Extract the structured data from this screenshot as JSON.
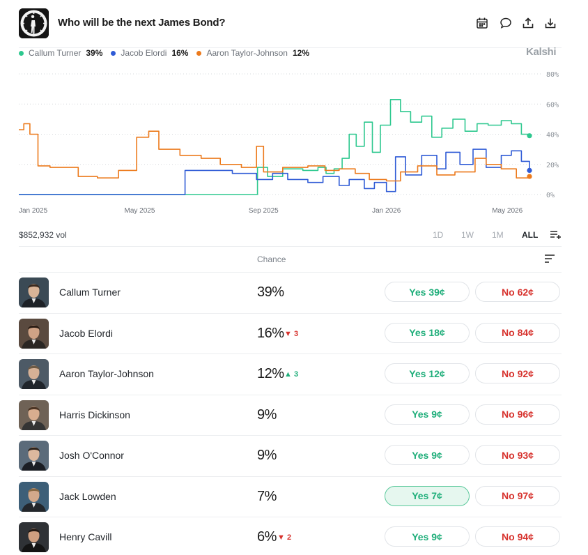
{
  "header": {
    "title": "Who will be the next James Bond?",
    "icons": [
      "calendar-icon",
      "comment-icon",
      "share-icon",
      "download-icon"
    ]
  },
  "legend": [
    {
      "name": "Callum Turner",
      "pct": "39%",
      "color": "#2ec88f"
    },
    {
      "name": "Jacob Elordi",
      "pct": "16%",
      "color": "#2f5bd6"
    },
    {
      "name": "Aaron Taylor-Johnson",
      "pct": "12%",
      "color": "#ec7a1c"
    }
  ],
  "brand": "Kalshi",
  "chart_data": {
    "type": "line",
    "x_ticks": [
      "Jan 2025",
      "May 2025",
      "Sep 2025",
      "Jan 2026",
      "May 2026"
    ],
    "y_ticks": [
      "80%",
      "60%",
      "40%",
      "20%",
      "0%"
    ],
    "ylim": [
      0,
      80
    ],
    "grid": true,
    "series": [
      {
        "name": "Callum Turner",
        "color": "#2ec88f",
        "x": [
          "2025-01-01",
          "2025-06-15",
          "2025-08-25",
          "2025-08-26",
          "2025-09-05",
          "2025-09-20",
          "2025-10-10",
          "2025-10-25",
          "2025-11-02",
          "2025-11-10",
          "2025-11-18",
          "2025-11-25",
          "2025-12-02",
          "2025-12-10",
          "2025-12-18",
          "2025-12-26",
          "2026-01-05",
          "2026-01-15",
          "2026-01-25",
          "2026-02-05",
          "2026-02-15",
          "2026-02-25",
          "2026-03-08",
          "2026-03-20",
          "2026-04-01",
          "2026-04-12",
          "2026-04-25",
          "2026-05-05",
          "2026-05-15",
          "2026-05-23"
        ],
        "y": [
          0,
          0,
          0,
          18,
          12,
          17,
          16,
          18,
          14,
          17,
          24,
          40,
          32,
          48,
          28,
          46,
          63,
          55,
          48,
          52,
          38,
          44,
          50,
          42,
          47,
          46,
          49,
          47,
          40,
          39
        ]
      },
      {
        "name": "Jacob Elordi",
        "color": "#2f5bd6",
        "x": [
          "2025-01-01",
          "2025-06-14",
          "2025-06-15",
          "2025-07-10",
          "2025-08-01",
          "2025-08-25",
          "2025-09-10",
          "2025-09-25",
          "2025-10-15",
          "2025-10-30",
          "2025-11-15",
          "2025-11-25",
          "2025-12-10",
          "2025-12-20",
          "2026-01-01",
          "2026-01-10",
          "2026-01-20",
          "2026-02-05",
          "2026-02-20",
          "2026-03-01",
          "2026-03-15",
          "2026-03-28",
          "2026-04-10",
          "2026-04-25",
          "2026-05-05",
          "2026-05-15",
          "2026-05-23"
        ],
        "y": [
          0,
          0,
          16,
          16,
          14,
          10,
          14,
          10,
          8,
          12,
          6,
          10,
          4,
          8,
          2,
          25,
          13,
          26,
          17,
          28,
          20,
          30,
          18,
          26,
          29,
          22,
          16
        ]
      },
      {
        "name": "Aaron Taylor-Johnson",
        "color": "#ec7a1c",
        "x": [
          "2025-01-01",
          "2025-01-06",
          "2025-01-12",
          "2025-01-20",
          "2025-02-01",
          "2025-03-01",
          "2025-03-20",
          "2025-04-10",
          "2025-04-28",
          "2025-05-10",
          "2025-05-20",
          "2025-06-10",
          "2025-07-01",
          "2025-07-20",
          "2025-08-10",
          "2025-08-25",
          "2025-09-01",
          "2025-09-20",
          "2025-10-15",
          "2025-11-01",
          "2025-11-15",
          "2025-12-01",
          "2025-12-15",
          "2026-01-01",
          "2026-01-15",
          "2026-02-01",
          "2026-02-20",
          "2026-03-10",
          "2026-03-30",
          "2026-04-10",
          "2026-04-25",
          "2026-05-10",
          "2026-05-23"
        ],
        "y": [
          43,
          47,
          40,
          19,
          18,
          12,
          11,
          16,
          38,
          42,
          30,
          26,
          24,
          20,
          18,
          32,
          15,
          18,
          19,
          16,
          17,
          14,
          10,
          9,
          15,
          19,
          13,
          15,
          24,
          20,
          17,
          11,
          12
        ]
      }
    ]
  },
  "volume": "$852,932 vol",
  "ranges": [
    "1D",
    "1W",
    "1M",
    "ALL"
  ],
  "active_range": "ALL",
  "table": {
    "chance_header": "Chance",
    "rows": [
      {
        "name": "Callum Turner",
        "chance": "39%",
        "delta": "",
        "dir": "",
        "yes": "Yes 39¢",
        "no": "No 62¢"
      },
      {
        "name": "Jacob Elordi",
        "chance": "16%",
        "delta": "3",
        "dir": "down",
        "yes": "Yes 18¢",
        "no": "No 84¢"
      },
      {
        "name": "Aaron Taylor-Johnson",
        "chance": "12%",
        "delta": "3",
        "dir": "up",
        "yes": "Yes 12¢",
        "no": "No 92¢"
      },
      {
        "name": "Harris Dickinson",
        "chance": "9%",
        "delta": "",
        "dir": "",
        "yes": "Yes 9¢",
        "no": "No 96¢"
      },
      {
        "name": "Josh O'Connor",
        "chance": "9%",
        "delta": "",
        "dir": "",
        "yes": "Yes 9¢",
        "no": "No 93¢"
      },
      {
        "name": "Jack Lowden",
        "chance": "7%",
        "delta": "",
        "dir": "",
        "yes": "Yes 7¢",
        "no": "No 97¢",
        "selected": true
      },
      {
        "name": "Henry Cavill",
        "chance": "6%",
        "delta": "2",
        "dir": "down",
        "yes": "Yes 9¢",
        "no": "No 94¢"
      }
    ]
  }
}
